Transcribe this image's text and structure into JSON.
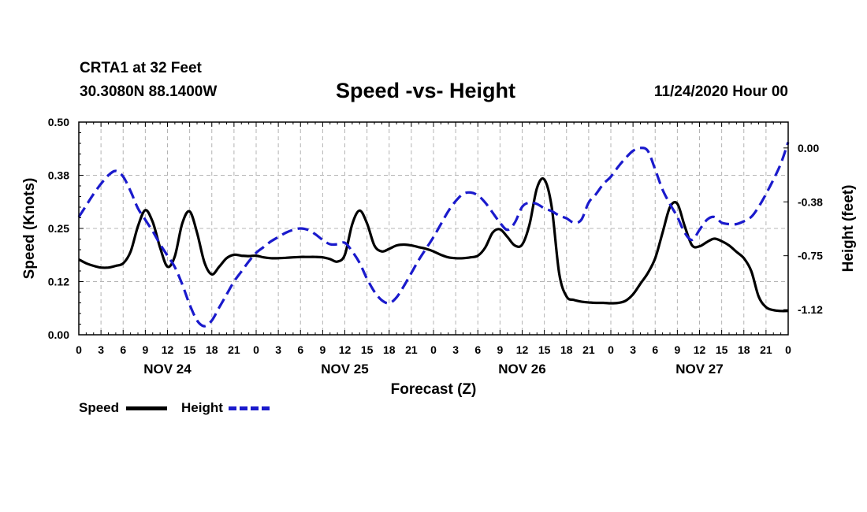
{
  "header": {
    "station": "CRTA1 at 32 Feet",
    "location": "30.3080N 88.1400W",
    "timestamp": "11/24/2020 Hour 00"
  },
  "colors": {
    "speed": "#000000",
    "height": "#1a1acc",
    "grid": "#b4b4b4",
    "frame": "#000000"
  },
  "legend": {
    "speed_label": "Speed",
    "height_label": "Height"
  },
  "chart_data": {
    "type": "line",
    "title": "Speed -vs- Height",
    "xlabel": "Forecast (Z)",
    "ylabel": "Speed (Knots)",
    "y2label": "Height (feet)",
    "x_range_hours": [
      0,
      96
    ],
    "ylim": [
      0,
      0.5
    ],
    "y2lim": [
      -1.3,
      0.18
    ],
    "y_ticks": [
      "0.00",
      "0.12",
      "0.25",
      "0.38",
      "0.50"
    ],
    "y_tick_values": [
      0,
      0.125,
      0.25,
      0.375,
      0.5
    ],
    "y2_ticks": [
      "0.00",
      "-0.38",
      "-0.75",
      "-1.12"
    ],
    "y2_tick_values": [
      0,
      -0.375,
      -0.75,
      -1.125
    ],
    "x_ticks": [
      "0",
      "3",
      "6",
      "9",
      "12",
      "15",
      "18",
      "21",
      "0",
      "3",
      "6",
      "9",
      "12",
      "15",
      "18",
      "21",
      "0",
      "3",
      "6",
      "9",
      "12",
      "15",
      "18",
      "21",
      "0",
      "3",
      "6",
      "9",
      "12",
      "15",
      "18",
      "21",
      "0"
    ],
    "x_tick_hours": [
      0,
      3,
      6,
      9,
      12,
      15,
      18,
      21,
      24,
      27,
      30,
      33,
      36,
      39,
      42,
      45,
      48,
      51,
      54,
      57,
      60,
      63,
      66,
      69,
      72,
      75,
      78,
      81,
      84,
      87,
      90,
      93,
      96
    ],
    "day_labels": [
      "NOV 24",
      "NOV 25",
      "NOV 26",
      "NOV 27"
    ],
    "day_label_hours": [
      12,
      36,
      60,
      84
    ],
    "series": [
      {
        "name": "Speed",
        "axis": "left",
        "style": "solid",
        "x": [
          0,
          1,
          2,
          3,
          4,
          5,
          6,
          7,
          8,
          9,
          10,
          11,
          12,
          13,
          14,
          15,
          16,
          17,
          18,
          19,
          20,
          21,
          22,
          23,
          24,
          25,
          26,
          27,
          28,
          29,
          30,
          31,
          32,
          33,
          34,
          35,
          36,
          37,
          38,
          39,
          40,
          41,
          42,
          43,
          44,
          45,
          46,
          47,
          48,
          49,
          50,
          51,
          52,
          53,
          54,
          55,
          56,
          57,
          58,
          59,
          60,
          61,
          62,
          63,
          64,
          65,
          66,
          67,
          68,
          69,
          70,
          71,
          72,
          73,
          74,
          75,
          76,
          77,
          78,
          79,
          80,
          81,
          82,
          83,
          84,
          85,
          86,
          87,
          88,
          89,
          90,
          91,
          92,
          93,
          94,
          95,
          96
        ],
        "values": [
          0.177,
          0.168,
          0.162,
          0.158,
          0.158,
          0.162,
          0.168,
          0.195,
          0.255,
          0.293,
          0.265,
          0.205,
          0.16,
          0.185,
          0.262,
          0.29,
          0.24,
          0.17,
          0.142,
          0.16,
          0.18,
          0.188,
          0.186,
          0.185,
          0.186,
          0.182,
          0.18,
          0.18,
          0.181,
          0.182,
          0.183,
          0.183,
          0.183,
          0.182,
          0.178,
          0.172,
          0.188,
          0.26,
          0.292,
          0.262,
          0.21,
          0.196,
          0.202,
          0.21,
          0.212,
          0.21,
          0.206,
          0.202,
          0.196,
          0.188,
          0.182,
          0.18,
          0.18,
          0.182,
          0.186,
          0.205,
          0.24,
          0.248,
          0.23,
          0.21,
          0.212,
          0.26,
          0.345,
          0.365,
          0.3,
          0.145,
          0.09,
          0.082,
          0.078,
          0.076,
          0.075,
          0.075,
          0.074,
          0.075,
          0.08,
          0.095,
          0.12,
          0.145,
          0.18,
          0.24,
          0.3,
          0.308,
          0.255,
          0.21,
          0.208,
          0.218,
          0.226,
          0.22,
          0.21,
          0.195,
          0.18,
          0.15,
          0.09,
          0.065,
          0.058,
          0.056,
          0.056
        ]
      },
      {
        "name": "Height",
        "axis": "right",
        "style": "dashed",
        "x": [
          0,
          1,
          2,
          3,
          4,
          5,
          6,
          7,
          8,
          9,
          10,
          11,
          12,
          13,
          14,
          15,
          16,
          17,
          18,
          19,
          20,
          21,
          22,
          23,
          24,
          25,
          26,
          27,
          28,
          29,
          30,
          31,
          32,
          33,
          34,
          35,
          36,
          37,
          38,
          39,
          40,
          41,
          42,
          43,
          44,
          45,
          46,
          47,
          48,
          49,
          50,
          51,
          52,
          53,
          54,
          55,
          56,
          57,
          58,
          59,
          60,
          61,
          62,
          63,
          64,
          65,
          66,
          67,
          68,
          69,
          70,
          71,
          72,
          73,
          74,
          75,
          76,
          77,
          78,
          79,
          80,
          81,
          82,
          83,
          84,
          85,
          86,
          87,
          88,
          89,
          90,
          91,
          92,
          93,
          94,
          95,
          96
        ],
        "values": [
          -0.48,
          -0.4,
          -0.32,
          -0.25,
          -0.19,
          -0.16,
          -0.2,
          -0.3,
          -0.42,
          -0.5,
          -0.58,
          -0.67,
          -0.75,
          -0.83,
          -0.95,
          -1.09,
          -1.2,
          -1.24,
          -1.2,
          -1.11,
          -1.02,
          -0.93,
          -0.86,
          -0.79,
          -0.73,
          -0.69,
          -0.65,
          -0.62,
          -0.59,
          -0.57,
          -0.56,
          -0.57,
          -0.6,
          -0.64,
          -0.67,
          -0.67,
          -0.66,
          -0.72,
          -0.8,
          -0.91,
          -1.0,
          -1.06,
          -1.08,
          -1.04,
          -0.96,
          -0.87,
          -0.78,
          -0.7,
          -0.62,
          -0.53,
          -0.44,
          -0.37,
          -0.32,
          -0.31,
          -0.33,
          -0.38,
          -0.45,
          -0.52,
          -0.57,
          -0.52,
          -0.41,
          -0.38,
          -0.39,
          -0.42,
          -0.44,
          -0.47,
          -0.49,
          -0.52,
          -0.5,
          -0.38,
          -0.32,
          -0.25,
          -0.2,
          -0.13,
          -0.07,
          -0.02,
          0.0,
          -0.02,
          -0.15,
          -0.29,
          -0.39,
          -0.48,
          -0.59,
          -0.64,
          -0.57,
          -0.5,
          -0.48,
          -0.52,
          -0.53,
          -0.53,
          -0.51,
          -0.48,
          -0.41,
          -0.32,
          -0.22,
          -0.11,
          0.04
        ]
      }
    ]
  }
}
